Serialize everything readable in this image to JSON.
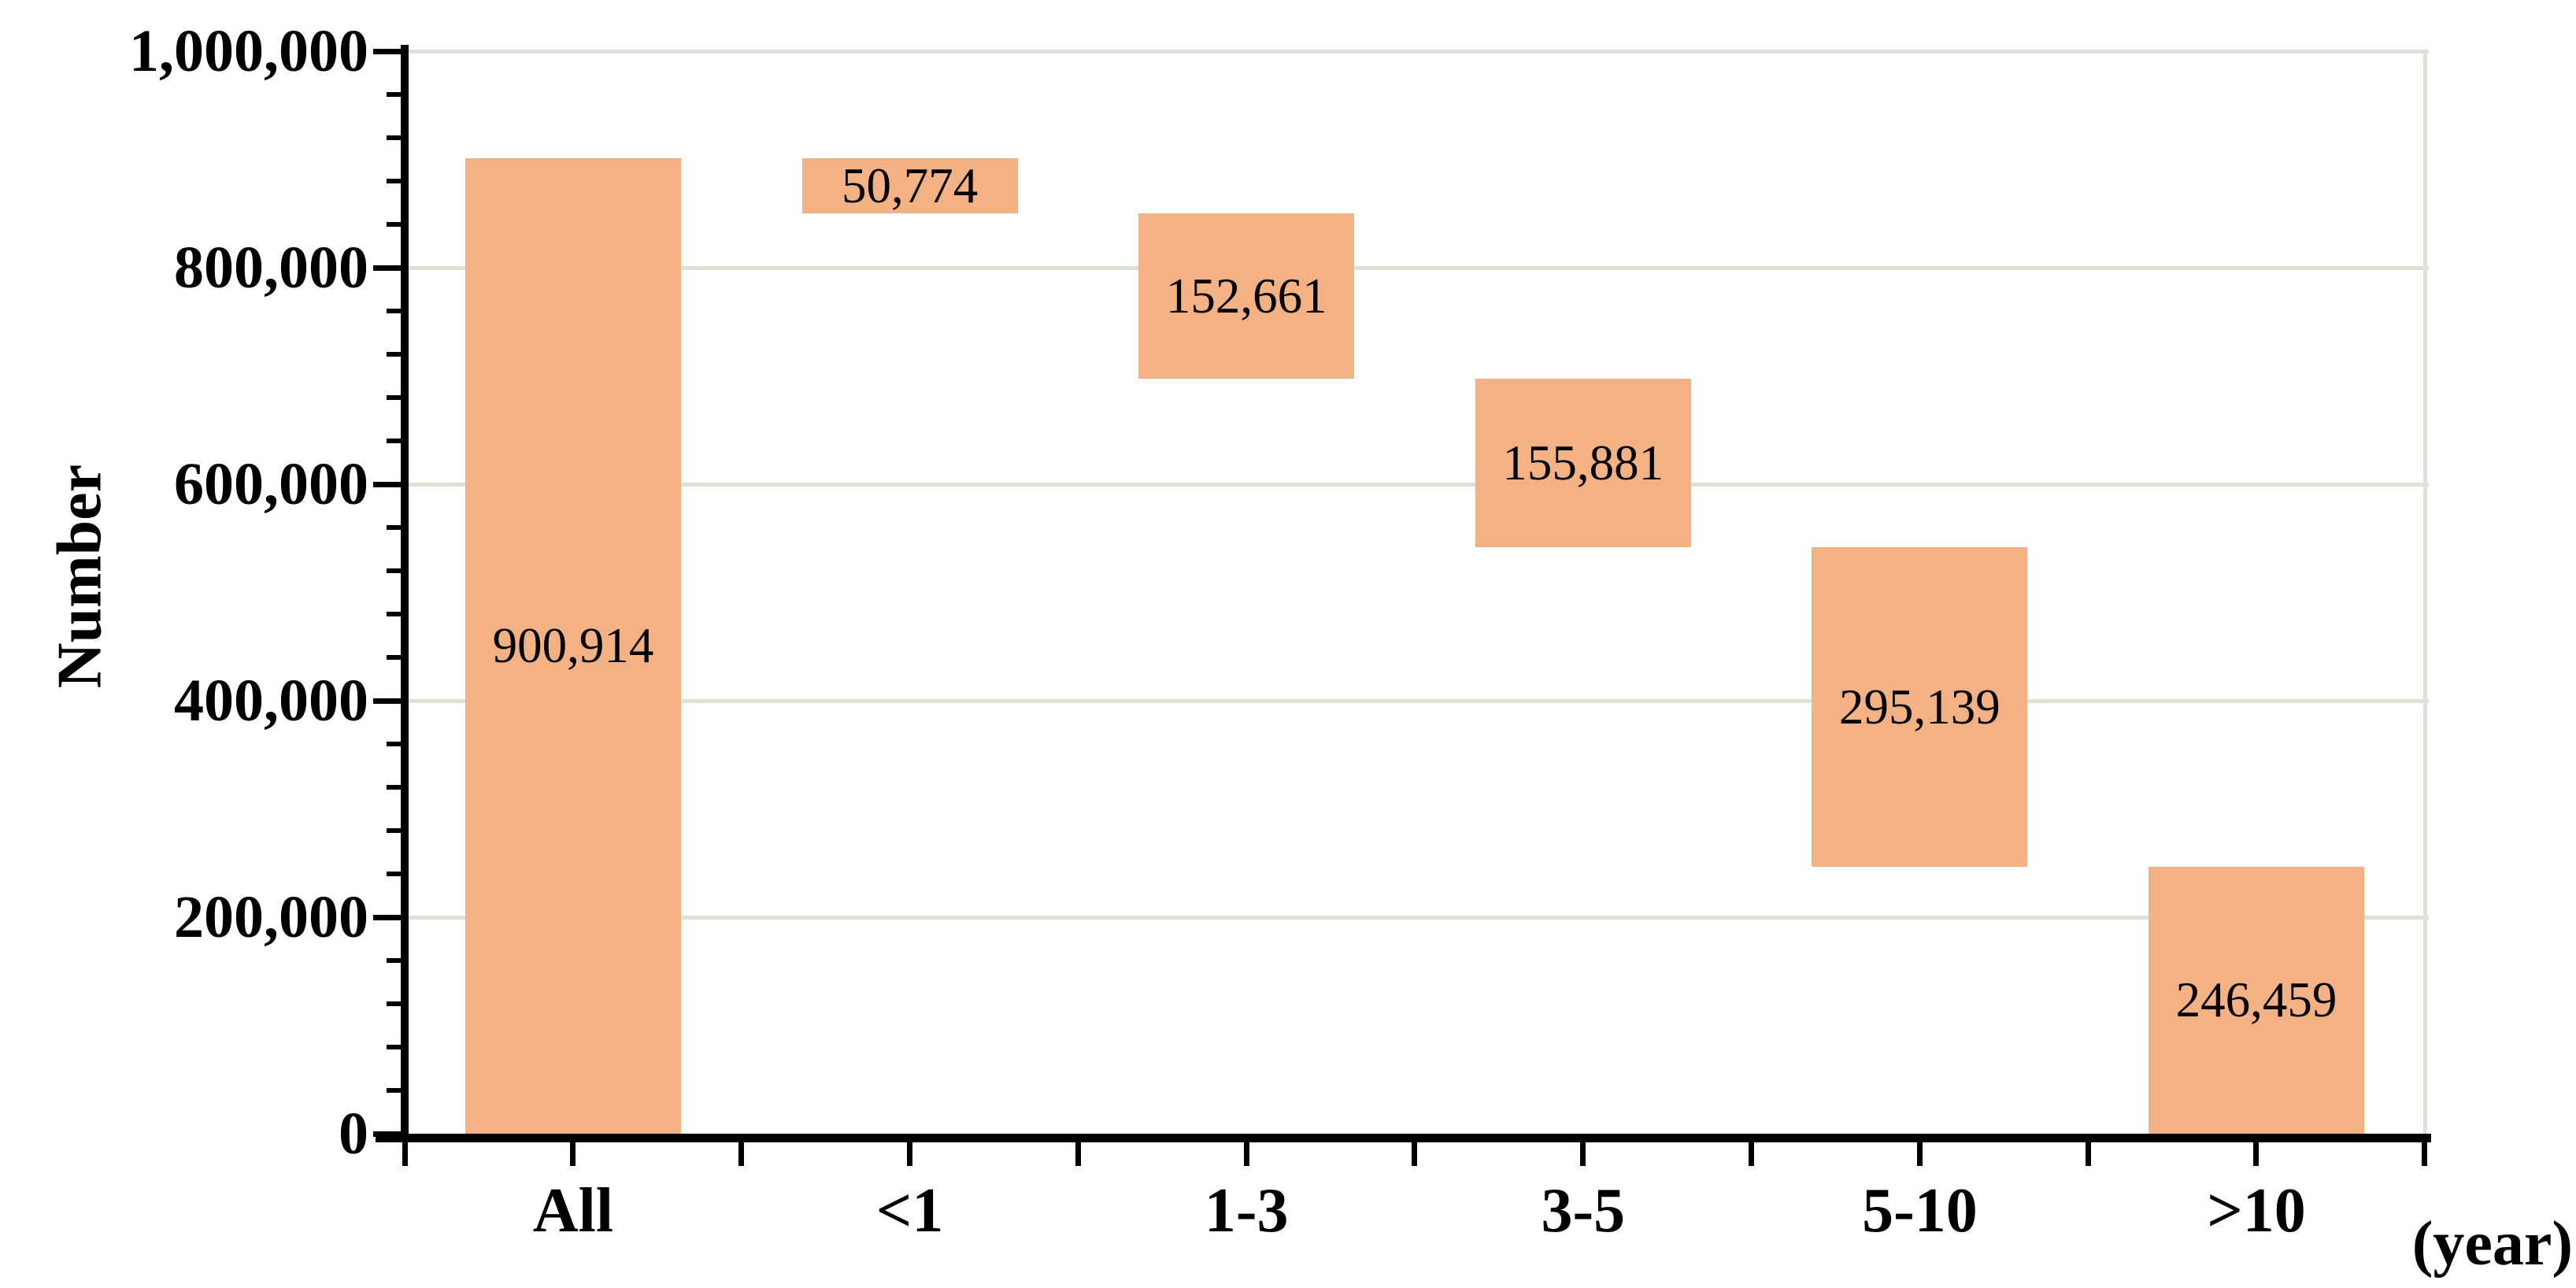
{
  "chart_data": {
    "type": "bar",
    "subtype": "waterfall",
    "title": "",
    "ylabel": "Number",
    "xlabel": "(year)",
    "categories": [
      "All",
      "<1",
      "1-3",
      "3-5",
      "5-10",
      ">10"
    ],
    "values": [
      900914,
      50774,
      152661,
      155881,
      295139,
      246459
    ],
    "value_labels": [
      "900,914",
      "50,774",
      "152,661",
      "155,881",
      "295,139",
      "246,459"
    ],
    "bar_start": [
      0,
      850140,
      697479,
      541598,
      246459,
      0
    ],
    "bar_end": [
      900914,
      900914,
      850140,
      697479,
      541598,
      246459
    ],
    "ylim": [
      0,
      1000000
    ],
    "ytick_interval": 200000,
    "ytick_labels": [
      "0",
      "200,000",
      "400,000",
      "600,000",
      "800,000",
      "1,000,000"
    ],
    "minor_tick_interval": 40000,
    "grid": true,
    "legend": false,
    "colors": {
      "bar": "#F4B183",
      "gridline": "#DAE3D6",
      "axis": "#000000",
      "text": "#000000",
      "background": "#FFFFFF"
    }
  }
}
